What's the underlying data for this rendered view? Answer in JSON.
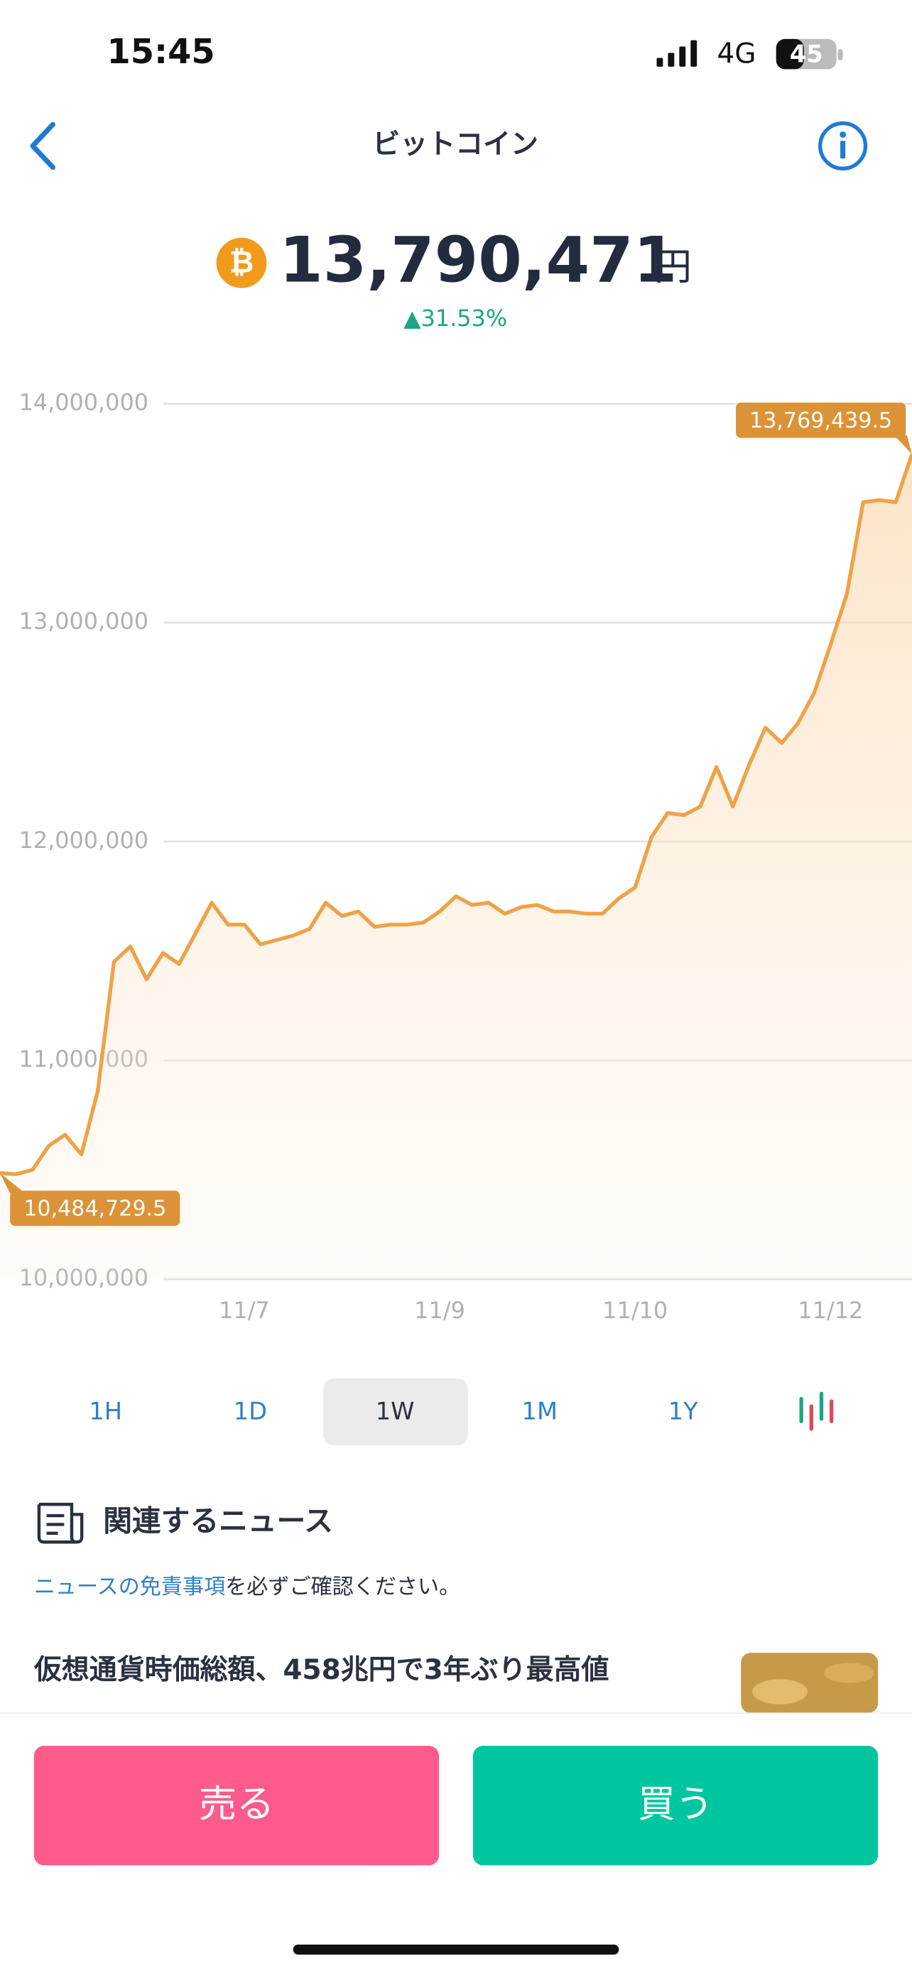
{
  "status": {
    "time": "15:45",
    "network": "4G",
    "battery": "45"
  },
  "header": {
    "title": "ビットコイン"
  },
  "price": {
    "value": "13,790,471",
    "unit": "円",
    "change": "▲31.53%"
  },
  "chart_data": {
    "type": "line",
    "categories": [
      null,
      null,
      null,
      null,
      null,
      null,
      null,
      null,
      null,
      null,
      null,
      null,
      null,
      null,
      null,
      "11/7",
      null,
      null,
      null,
      null,
      null,
      null,
      null,
      null,
      null,
      null,
      null,
      "11/9",
      null,
      null,
      null,
      null,
      null,
      null,
      null,
      null,
      null,
      null,
      null,
      "11/10",
      null,
      null,
      null,
      null,
      null,
      null,
      null,
      null,
      null,
      null,
      null,
      "11/12",
      null,
      null,
      null,
      null,
      null
    ],
    "series": [
      {
        "color": "#eea248",
        "values": [
          10484729.5,
          10480000,
          10500000,
          10610000,
          10660000,
          10570000,
          10860000,
          11450000,
          11520000,
          11370000,
          11490000,
          11440000,
          11580000,
          11720000,
          11620000,
          11620000,
          11530000,
          11550000,
          11570000,
          11600000,
          11720000,
          11660000,
          11680000,
          11610000,
          11620000,
          11620000,
          11630000,
          11680000,
          11750000,
          11710000,
          11720000,
          11670000,
          11700000,
          11710000,
          11680000,
          11680000,
          11670000,
          11670000,
          11740000,
          11790000,
          12020000,
          12130000,
          12120000,
          12160000,
          12340000,
          12160000,
          12350000,
          12520000,
          12450000,
          12540000,
          12680000,
          12900000,
          13130000,
          13550000,
          13560000,
          13550000,
          13769439.5
        ],
        "value_labels": [
          "10,484,729.5",
          null,
          null,
          null,
          null,
          null,
          null,
          null,
          null,
          null,
          null,
          null,
          null,
          null,
          null,
          null,
          null,
          null,
          null,
          null,
          null,
          null,
          null,
          null,
          null,
          null,
          null,
          null,
          null,
          null,
          null,
          null,
          null,
          null,
          null,
          null,
          null,
          null,
          null,
          null,
          null,
          null,
          null,
          null,
          null,
          null,
          null,
          null,
          null,
          null,
          null,
          null,
          null,
          null,
          null,
          null,
          "13,769,439.5"
        ]
      }
    ],
    "ylim": [
      10000000,
      14000000
    ],
    "yticks": [
      {
        "value": 10000000,
        "label": "10,000,000"
      },
      {
        "value": 11000000,
        "label": "11,000,000"
      },
      {
        "value": 12000000,
        "label": "12,000,000"
      },
      {
        "value": 13000000,
        "label": "13,000,000"
      },
      {
        "value": 14000000,
        "label": "14,000,000"
      }
    ],
    "grid": true
  },
  "periods": [
    "1H",
    "1D",
    "1W",
    "1M",
    "1Y"
  ],
  "news": {
    "heading": "関連するニュース",
    "disclaimer_link": "ニュースの免責事項",
    "disclaimer_rest": "を必ずご確認ください。",
    "headline": "仮想通貨時価総額、458兆円で3年ぶり最高値"
  },
  "actions": {
    "sell": "売る",
    "buy": "買う"
  }
}
